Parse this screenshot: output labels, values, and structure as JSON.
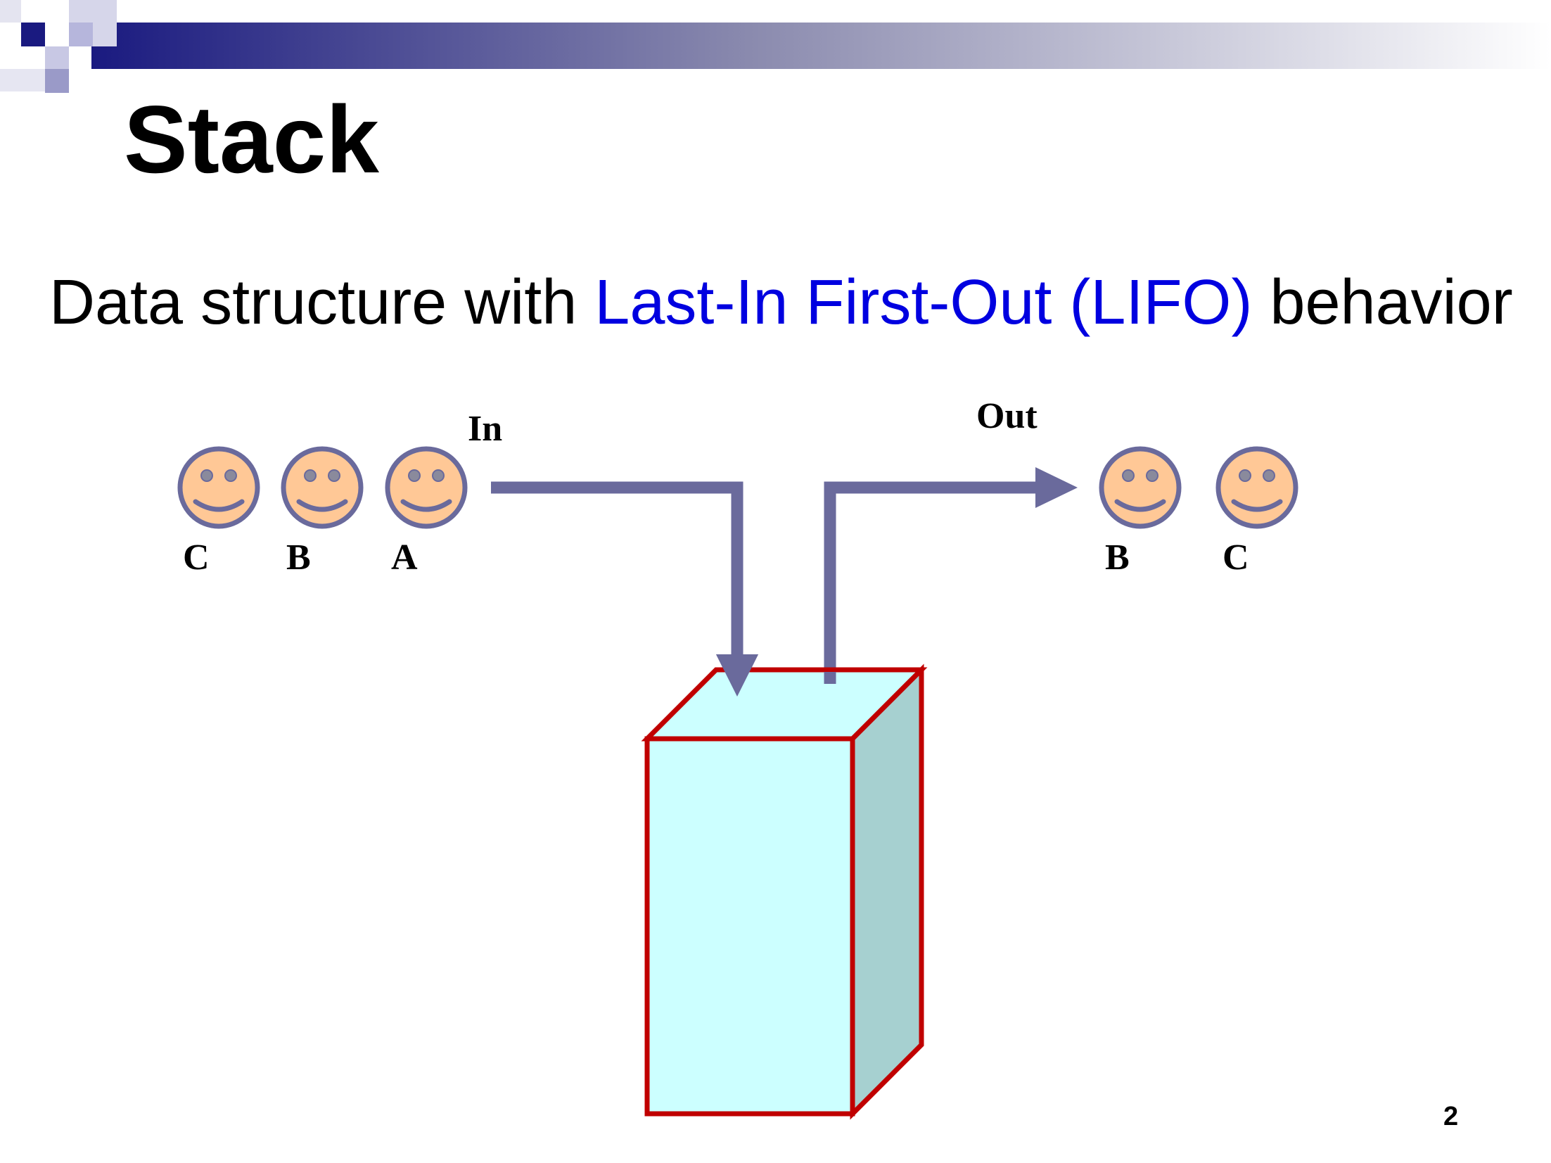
{
  "slide": {
    "title": "Stack",
    "subtitle": {
      "before": "Data structure with ",
      "highlight": "Last-In First-Out (LIFO)",
      "after": " behavior"
    },
    "page_number": "2"
  },
  "diagram": {
    "in_label": "In",
    "out_label": "Out",
    "incoming": [
      {
        "label": "C"
      },
      {
        "label": "B"
      },
      {
        "label": "A"
      }
    ],
    "outgoing": [
      {
        "label": "B"
      },
      {
        "label": "C"
      }
    ]
  },
  "colors": {
    "arrow": "#6a6a9c",
    "face_fill": "#ffc896",
    "face_stroke": "#6a6a9c",
    "box_front": "#ccffff",
    "box_side": "#a6d0d0",
    "box_border": "#c00000",
    "highlight_text": "#0000e0",
    "header_dark": "#1a1a80"
  }
}
